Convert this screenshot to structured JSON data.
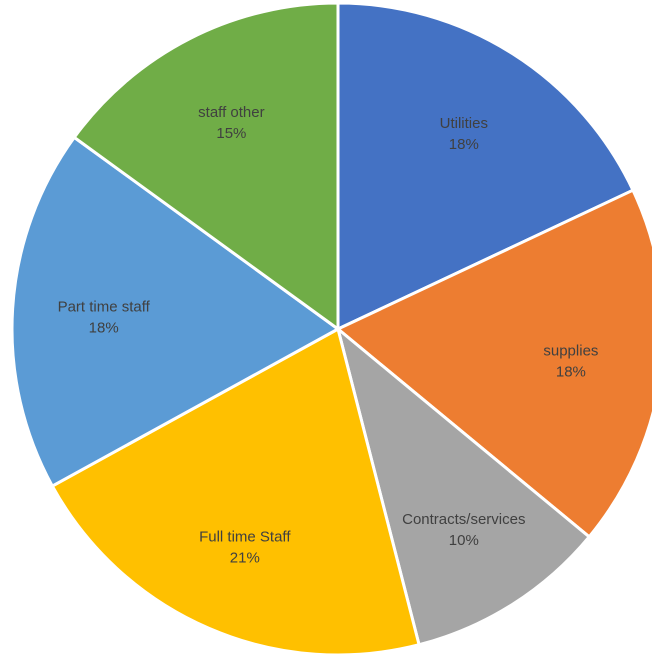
{
  "chart_data": {
    "type": "pie",
    "title": "",
    "start_angle_deg": 0,
    "direction": "clockwise",
    "slices": [
      {
        "label": "Utilities",
        "percent_label": "18%",
        "value": 18,
        "color": "#4472C4"
      },
      {
        "label": "supplies",
        "percent_label": "18%",
        "value": 18,
        "color": "#ED7D31"
      },
      {
        "label": "Contracts/services",
        "percent_label": "10%",
        "value": 10,
        "color": "#A5A5A5"
      },
      {
        "label": "Full time Staff",
        "percent_label": "21%",
        "value": 21,
        "color": "#FFC000"
      },
      {
        "label": "Part time staff",
        "percent_label": "18%",
        "value": 18,
        "color": "#5B9BD5"
      },
      {
        "label": "staff other",
        "percent_label": "15%",
        "value": 15,
        "color": "#70AD47"
      }
    ],
    "legend": "none",
    "border_color": "#FFFFFF"
  }
}
